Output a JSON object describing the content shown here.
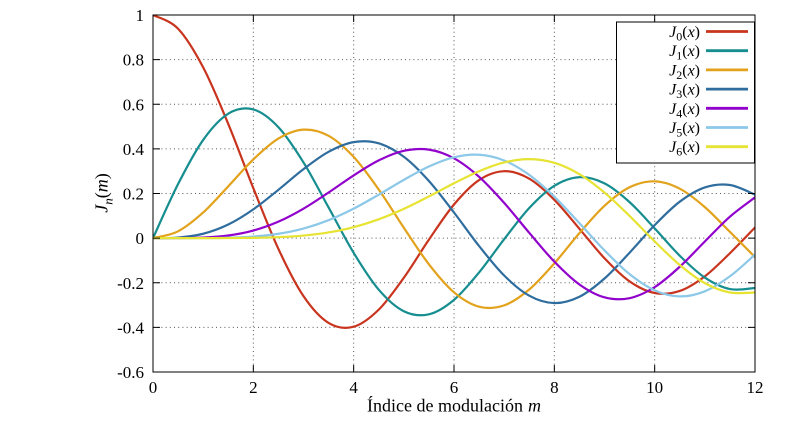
{
  "axes": {
    "xlabel": {
      "text": "Índice de modulación",
      "var": "m"
    },
    "ylabel": {
      "base": "J",
      "sub": "n",
      "open": "(",
      "var": "m",
      "close": ")"
    },
    "x": {
      "min": 0,
      "max": 12,
      "ticks": [
        0,
        2,
        4,
        6,
        8,
        10,
        12
      ],
      "tick_labels": [
        "0",
        "2",
        "4",
        "6",
        "8",
        "10",
        "12"
      ]
    },
    "y": {
      "min": -0.6,
      "max": 1,
      "ticks": [
        -0.6,
        -0.4,
        -0.2,
        0,
        0.2,
        0.4,
        0.6,
        0.8,
        1
      ],
      "tick_labels": [
        "-0.6",
        "-0.4",
        "-0.2",
        "0",
        "0.2",
        "0.4",
        "0.6",
        "0.8",
        "1"
      ]
    },
    "grid_color": "#555555",
    "border_color": "#000000"
  },
  "chart_data": {
    "type": "line",
    "title": "",
    "xlabel": "Índice de modulación m",
    "ylabel": "J_n(m)",
    "xlim": [
      0,
      12
    ],
    "ylim": [
      -0.6,
      1
    ],
    "grid": true,
    "legend_position": "top-right",
    "x": [
      0,
      0.5,
      1,
      1.5,
      2,
      2.5,
      3,
      3.5,
      4,
      4.5,
      5,
      5.5,
      6,
      6.5,
      7,
      7.5,
      8,
      8.5,
      9,
      9.5,
      10,
      10.5,
      11,
      11.5,
      12
    ],
    "series": [
      {
        "name": "J0(x)",
        "label": {
          "base": "J",
          "sub": "0",
          "open": "(",
          "var": "x",
          "close": ")"
        },
        "color": "#c8341e",
        "values": [
          1.0,
          0.9385,
          0.7652,
          0.5118,
          0.2239,
          -0.0484,
          -0.2601,
          -0.3801,
          -0.3971,
          -0.3205,
          -0.1776,
          -0.0068,
          0.1506,
          0.2601,
          0.3001,
          0.2663,
          0.1717,
          0.0419,
          -0.0903,
          -0.1939,
          -0.2459,
          -0.2366,
          -0.1712,
          -0.0677,
          0.0477
        ]
      },
      {
        "name": "J1(x)",
        "label": {
          "base": "J",
          "sub": "1",
          "open": "(",
          "var": "x",
          "close": ")"
        },
        "color": "#168d8f",
        "values": [
          0,
          0.2423,
          0.4401,
          0.5579,
          0.5767,
          0.4971,
          0.3391,
          0.1374,
          -0.066,
          -0.2311,
          -0.3276,
          -0.3414,
          -0.2767,
          -0.1538,
          -0.0047,
          0.1352,
          0.2346,
          0.2731,
          0.2453,
          0.1613,
          0.0435,
          -0.0789,
          -0.1768,
          -0.2284,
          -0.2234
        ]
      },
      {
        "name": "J2(x)",
        "label": {
          "base": "J",
          "sub": "2",
          "open": "(",
          "var": "x",
          "close": ")"
        },
        "color": "#e2a21b",
        "values": [
          0,
          0.0306,
          0.1149,
          0.2321,
          0.3528,
          0.4461,
          0.4861,
          0.4586,
          0.3641,
          0.2178,
          0.0466,
          -0.1173,
          -0.2429,
          -0.3074,
          -0.3014,
          -0.2303,
          -0.113,
          0.0223,
          0.1448,
          0.2279,
          0.2546,
          0.2216,
          0.139,
          0.0279,
          -0.0849
        ]
      },
      {
        "name": "J3(x)",
        "label": {
          "base": "J",
          "sub": "3",
          "open": "(",
          "var": "x",
          "close": ")"
        },
        "color": "#2f6d9e",
        "values": [
          0,
          0.0026,
          0.0196,
          0.061,
          0.1289,
          0.2166,
          0.3091,
          0.3868,
          0.4302,
          0.4247,
          0.3648,
          0.2561,
          0.1148,
          -0.0353,
          -0.1676,
          -0.2581,
          -0.2911,
          -0.2626,
          -0.1809,
          -0.0653,
          0.0584,
          0.1633,
          0.2273,
          0.2381,
          0.1951
        ]
      },
      {
        "name": "J4(x)",
        "label": {
          "base": "J",
          "sub": "4",
          "open": "(",
          "var": "x",
          "close": ")"
        },
        "color": "#9102cc",
        "values": [
          0,
          0.0002,
          0.0025,
          0.0118,
          0.034,
          0.0738,
          0.132,
          0.2044,
          0.2811,
          0.3484,
          0.3912,
          0.3967,
          0.3576,
          0.2748,
          0.1578,
          0.0238,
          -0.1054,
          -0.2077,
          -0.2655,
          -0.269,
          -0.2196,
          -0.1283,
          -0.0151,
          0.0962,
          0.1825
        ]
      },
      {
        "name": "J5(x)",
        "label": {
          "base": "J",
          "sub": "5",
          "open": "(",
          "var": "x",
          "close": ")"
        },
        "color": "#8cc8e8",
        "values": [
          0,
          0.0,
          0.0002,
          0.0018,
          0.007,
          0.0195,
          0.043,
          0.0804,
          0.1321,
          0.1947,
          0.2611,
          0.3209,
          0.3621,
          0.3736,
          0.3479,
          0.2835,
          0.1858,
          0.0671,
          -0.055,
          -0.1613,
          -0.2341,
          -0.2611,
          -0.2383,
          -0.1711,
          -0.0735
        ]
      },
      {
        "name": "J6(x)",
        "label": {
          "base": "J",
          "sub": "6",
          "open": "(",
          "var": "x",
          "close": ")"
        },
        "color": "#e6e332",
        "values": [
          0,
          0.0,
          0.0,
          0.0002,
          0.0012,
          0.0042,
          0.0114,
          0.0254,
          0.0491,
          0.0843,
          0.131,
          0.1868,
          0.2458,
          0.2999,
          0.3392,
          0.3541,
          0.3376,
          0.2867,
          0.2043,
          0.0993,
          -0.0145,
          -0.1203,
          -0.2016,
          -0.2437,
          -0.2437
        ]
      }
    ]
  }
}
